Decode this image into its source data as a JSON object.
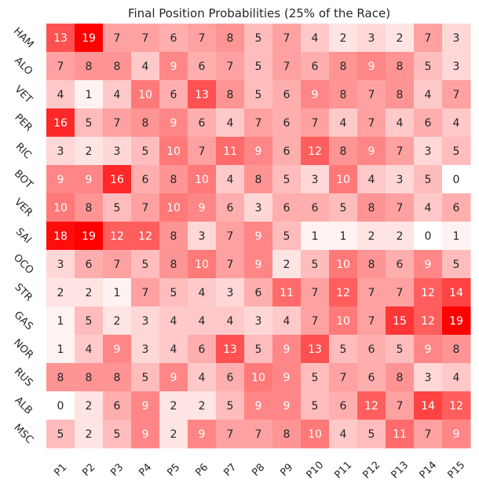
{
  "chart_data": {
    "type": "heatmap",
    "title": "Final Position Probabilities (25% of the Race)",
    "xlabel": "",
    "ylabel": "",
    "rows": [
      "HAM",
      "ALO",
      "VET",
      "PER",
      "RIC",
      "BOT",
      "VER",
      "SAI",
      "OCO",
      "STR",
      "GAS",
      "NOR",
      "RUS",
      "ALB",
      "MSC"
    ],
    "columns": [
      "P1",
      "P2",
      "P3",
      "P4",
      "P5",
      "P6",
      "P7",
      "P8",
      "P9",
      "P10",
      "P11",
      "P12",
      "P13",
      "P14",
      "P15"
    ],
    "values": [
      [
        13,
        19,
        7,
        7,
        6,
        7,
        8,
        5,
        7,
        4,
        2,
        3,
        2,
        7,
        3
      ],
      [
        7,
        8,
        8,
        4,
        9,
        6,
        7,
        5,
        7,
        6,
        8,
        9,
        8,
        5,
        3
      ],
      [
        4,
        1,
        4,
        10,
        6,
        13,
        8,
        5,
        6,
        9,
        8,
        7,
        8,
        4,
        7
      ],
      [
        16,
        5,
        7,
        8,
        9,
        6,
        4,
        7,
        6,
        7,
        4,
        7,
        4,
        6,
        4
      ],
      [
        3,
        2,
        3,
        5,
        10,
        7,
        11,
        9,
        6,
        12,
        8,
        9,
        7,
        3,
        5
      ],
      [
        9,
        9,
        16,
        6,
        8,
        10,
        4,
        8,
        5,
        3,
        10,
        4,
        3,
        5,
        0
      ],
      [
        10,
        8,
        5,
        7,
        10,
        9,
        6,
        3,
        6,
        6,
        5,
        8,
        7,
        4,
        6
      ],
      [
        18,
        19,
        12,
        12,
        8,
        3,
        7,
        9,
        5,
        1,
        1,
        2,
        2,
        0,
        1
      ],
      [
        3,
        6,
        7,
        5,
        8,
        10,
        7,
        9,
        2,
        5,
        10,
        8,
        6,
        9,
        5
      ],
      [
        2,
        2,
        1,
        7,
        5,
        4,
        3,
        6,
        11,
        7,
        12,
        7,
        7,
        12,
        14
      ],
      [
        1,
        5,
        2,
        3,
        4,
        4,
        4,
        3,
        4,
        7,
        10,
        7,
        15,
        12,
        19
      ],
      [
        1,
        4,
        9,
        3,
        4,
        6,
        13,
        5,
        9,
        13,
        5,
        6,
        5,
        9,
        8
      ],
      [
        8,
        8,
        8,
        5,
        9,
        4,
        6,
        10,
        9,
        5,
        7,
        6,
        8,
        3,
        4
      ],
      [
        0,
        2,
        6,
        9,
        2,
        2,
        5,
        9,
        9,
        5,
        6,
        12,
        7,
        14,
        12
      ],
      [
        5,
        2,
        5,
        9,
        2,
        9,
        7,
        7,
        8,
        10,
        4,
        5,
        11,
        7,
        9
      ]
    ],
    "color_scale": {
      "min": 0,
      "max": 19,
      "low_color": "#ffffff",
      "high_color": "#ff0000"
    },
    "grid": false,
    "colorbar": false
  }
}
